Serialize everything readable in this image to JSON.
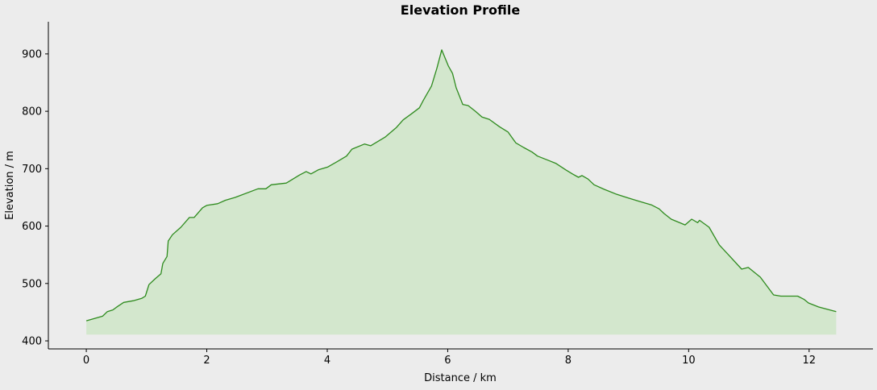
{
  "chart_data": {
    "type": "area",
    "title": "Elevation Profile",
    "xlabel": "Distance / km",
    "ylabel": "Elevation / m",
    "xlim": [
      -0.63,
      13.06
    ],
    "ylim": [
      386,
      956
    ],
    "fill_baseline": 411,
    "xticks": [
      0,
      2,
      4,
      6,
      8,
      10,
      12
    ],
    "yticks": [
      400,
      500,
      600,
      700,
      800,
      900
    ],
    "grid": false,
    "line_color": "#2e8b1e",
    "fill_color": "#d3e7cd",
    "background_color": "#ececec",
    "x": [
      0,
      0.27,
      0.35,
      0.44,
      0.52,
      0.62,
      0.78,
      0.92,
      0.98,
      1.04,
      1.14,
      1.24,
      1.27,
      1.34,
      1.36,
      1.43,
      1.57,
      1.71,
      1.79,
      1.93,
      2.0,
      2.18,
      2.31,
      2.47,
      2.85,
      2.98,
      3.07,
      3.32,
      3.54,
      3.65,
      3.73,
      3.85,
      4.01,
      4.16,
      4.32,
      4.41,
      4.62,
      4.72,
      4.96,
      5.15,
      5.26,
      5.39,
      5.53,
      5.6,
      5.73,
      5.82,
      5.9,
      6.01,
      6.08,
      6.14,
      6.25,
      6.34,
      6.46,
      6.57,
      6.69,
      6.86,
      7.0,
      7.13,
      7.26,
      7.4,
      7.49,
      7.66,
      7.8,
      7.96,
      8.07,
      8.17,
      8.23,
      8.33,
      8.43,
      8.6,
      8.79,
      9.0,
      9.18,
      9.38,
      9.51,
      9.59,
      9.71,
      9.94,
      10.05,
      10.15,
      10.18,
      10.34,
      10.51,
      10.67,
      10.88,
      10.99,
      11.19,
      11.41,
      11.53,
      11.81,
      11.92,
      11.99,
      12.16,
      12.45
    ],
    "y": [
      435,
      443,
      451,
      454,
      460,
      467,
      470,
      474,
      478,
      498,
      508,
      517,
      535,
      547,
      574,
      585,
      598,
      615,
      615,
      632,
      636,
      639,
      645,
      650,
      665,
      665,
      672,
      675,
      689,
      695,
      691,
      698,
      703,
      712,
      722,
      734,
      743,
      740,
      755,
      772,
      785,
      795,
      806,
      820,
      844,
      875,
      907,
      879,
      866,
      841,
      812,
      810,
      800,
      790,
      786,
      773,
      764,
      745,
      737,
      729,
      722,
      715,
      709,
      698,
      691,
      685,
      688,
      682,
      672,
      664,
      656,
      649,
      643,
      637,
      630,
      622,
      612,
      602,
      612,
      606,
      610,
      598,
      567,
      549,
      525,
      528,
      511,
      480,
      478,
      478,
      472,
      466,
      459,
      451
    ]
  }
}
